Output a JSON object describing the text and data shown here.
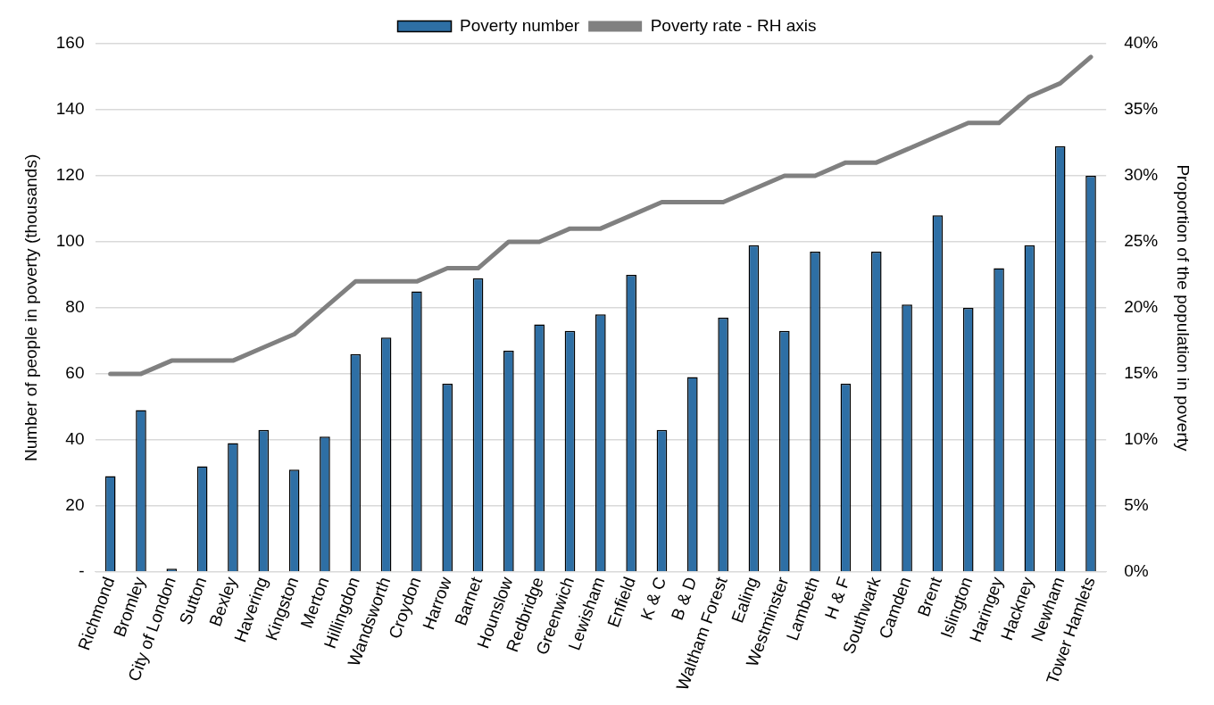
{
  "chart_data": {
    "type": "bar",
    "categories": [
      "Richmond",
      "Bromley",
      "City of London",
      "Sutton",
      "Bexley",
      "Havering",
      "Kingston",
      "Merton",
      "Hillingdon",
      "Wandsworth",
      "Croydon",
      "Harrow",
      "Barnet",
      "Hounslow",
      "Redbridge",
      "Greenwich",
      "Lewisham",
      "Enfield",
      "K & C",
      "B & D",
      "Waltham Forest",
      "Ealing",
      "Westminster",
      "Lambeth",
      "H & F",
      "Southwark",
      "Camden",
      "Brent",
      "Islington",
      "Haringey",
      "Hackney",
      "Newham",
      "Tower Hamlets"
    ],
    "series": [
      {
        "name": "Poverty number",
        "color": "#2e6fa5",
        "values": [
          29,
          49,
          1,
          32,
          39,
          43,
          31,
          41,
          66,
          71,
          85,
          57,
          89,
          67,
          75,
          73,
          78,
          90,
          43,
          59,
          77,
          99,
          73,
          97,
          57,
          97,
          81,
          108,
          80,
          92,
          99,
          129,
          120
        ]
      },
      {
        "name": "Poverty rate - RH axis",
        "type": "line",
        "axis": "y2",
        "color": "#808080",
        "values": [
          15,
          15,
          16,
          16,
          16,
          17,
          18,
          20,
          22,
          22,
          22,
          23,
          23,
          25,
          25,
          26,
          26,
          27,
          28,
          28,
          28,
          29,
          30,
          30,
          31,
          31,
          32,
          33,
          34,
          34,
          36,
          37,
          39
        ]
      }
    ],
    "ylabel": "Number of people in poverty (thousands)",
    "y2label": "Proportion of the population in poverty",
    "ylim": [
      0,
      160
    ],
    "yticks": [
      {
        "value": 0,
        "label": "-"
      },
      20,
      40,
      60,
      80,
      100,
      120,
      140,
      160
    ],
    "y2lim": [
      0,
      40
    ],
    "y2ticks": [
      {
        "value": 0,
        "label": "0%"
      },
      {
        "value": 5,
        "label": "5%"
      },
      {
        "value": 10,
        "label": "10%"
      },
      {
        "value": 15,
        "label": "15%"
      },
      {
        "value": 20,
        "label": "20%"
      },
      {
        "value": 25,
        "label": "25%"
      },
      {
        "value": 30,
        "label": "30%"
      },
      {
        "value": 35,
        "label": "35%"
      },
      {
        "value": 40,
        "label": "40%"
      }
    ],
    "grid": "y",
    "legend": "top",
    "marker": "none"
  }
}
